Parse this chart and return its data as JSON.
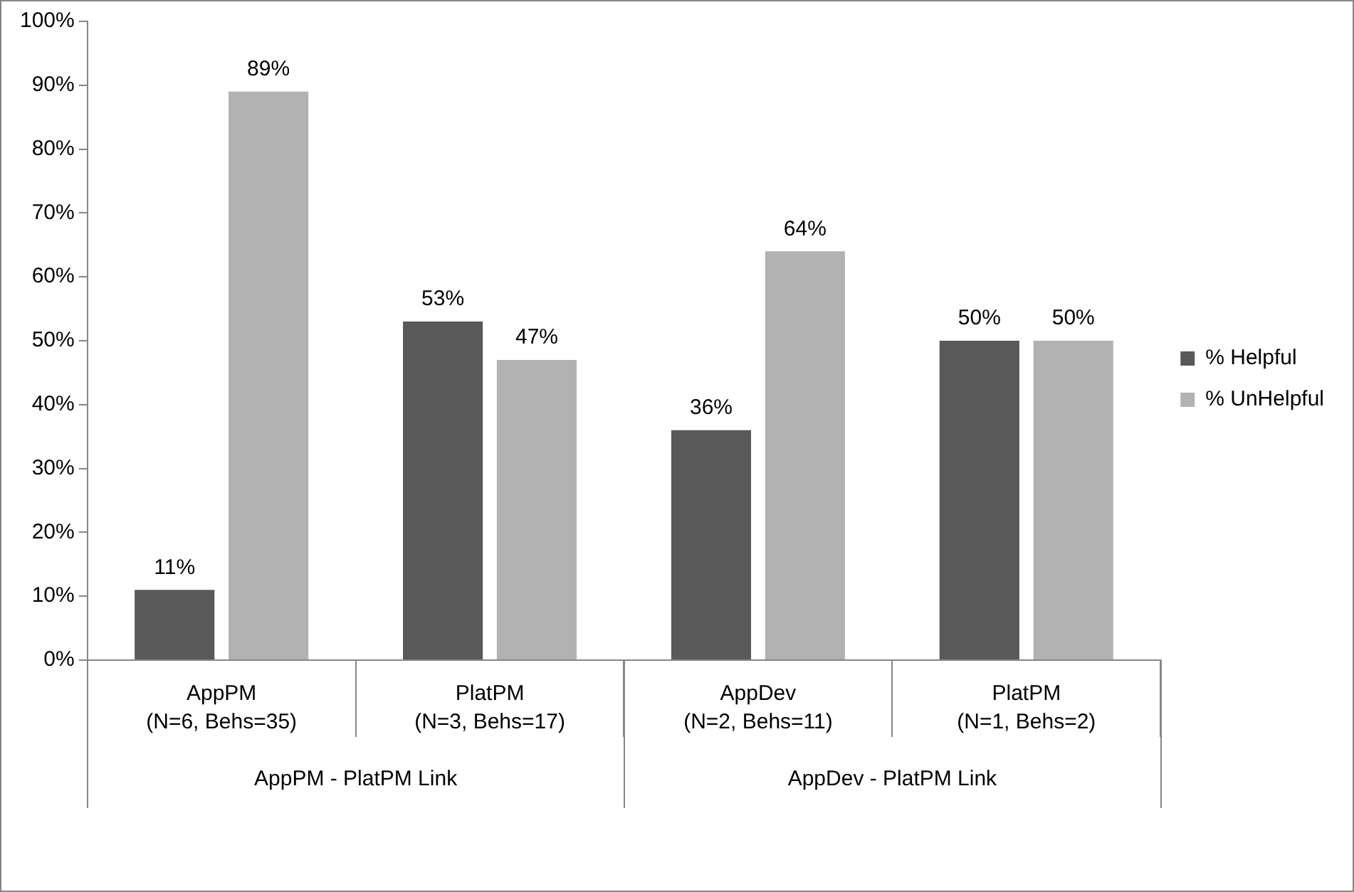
{
  "chart_data": {
    "type": "bar",
    "categories": [
      "AppPM\n(N=6, Behs=35)",
      "PlatPM\n(N=3, Behs=17)",
      "AppDev\n(N=2, Behs=11)",
      "PlatPM\n(N=1, Behs=2)"
    ],
    "series": [
      {
        "name": "% Helpful",
        "color": "#595959",
        "values": [
          11,
          53,
          36,
          50
        ],
        "value_labels": [
          "11%",
          "53%",
          "36%",
          "50%"
        ]
      },
      {
        "name": "% UnHelpful",
        "color": "#b2b2b2",
        "values": [
          89,
          47,
          64,
          50
        ],
        "value_labels": [
          "89%",
          "47%",
          "64%",
          "50%"
        ]
      }
    ],
    "ylim": [
      0,
      100
    ],
    "yticks": [
      {
        "value": 0,
        "label": "0%"
      },
      {
        "value": 10,
        "label": "10%"
      },
      {
        "value": 20,
        "label": "20%"
      },
      {
        "value": 30,
        "label": "30%"
      },
      {
        "value": 40,
        "label": "40%"
      },
      {
        "value": 50,
        "label": "50%"
      },
      {
        "value": 60,
        "label": "60%"
      },
      {
        "value": 70,
        "label": "70%"
      },
      {
        "value": 80,
        "label": "80%"
      },
      {
        "value": 90,
        "label": "90%"
      },
      {
        "value": 100,
        "label": "100%"
      }
    ],
    "annotations": [
      "AppPM - PlatPM Link",
      "AppDev - PlatPM Link"
    ],
    "legend": "right"
  }
}
